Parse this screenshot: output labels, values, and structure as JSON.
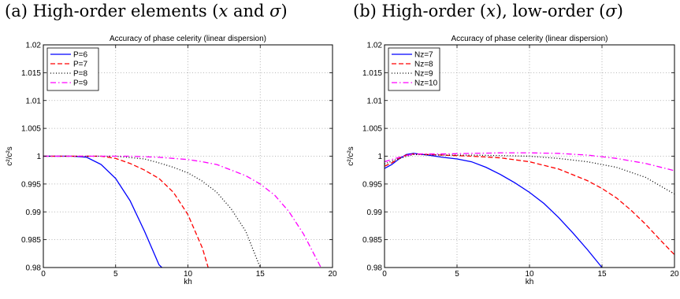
{
  "panels": [
    {
      "caption_prefix": "(a) High-order elements (",
      "caption_var1": "x",
      "caption_mid": " and ",
      "caption_var2": "σ",
      "caption_suffix": ")"
    },
    {
      "caption_prefix": "(b) High-order (",
      "caption_var1": "x",
      "caption_mid": "), low-order (",
      "caption_var2": "σ",
      "caption_suffix": ")"
    }
  ],
  "chart_data": [
    {
      "type": "line",
      "title": "Accuracy of phase celerity (linear dispersion)",
      "xlabel": "kh",
      "ylabel": "c²/c²s",
      "xlim": [
        0,
        20
      ],
      "ylim": [
        0.98,
        1.02
      ],
      "xticks": [
        "0",
        "5",
        "10",
        "15",
        "20"
      ],
      "yticks": [
        "0.98",
        "0.985",
        "0.99",
        "0.995",
        "1",
        "1.005",
        "1.01",
        "1.015",
        "1.02"
      ],
      "grid": true,
      "legend_position": "top-left",
      "series": [
        {
          "name": "P=6",
          "color": "#0000ff",
          "dash": "solid",
          "x": [
            0,
            1,
            2,
            3,
            4,
            5,
            6,
            7,
            7.5,
            8,
            8.2
          ],
          "y": [
            1,
            1,
            1,
            0.9998,
            0.9985,
            0.996,
            0.992,
            0.9865,
            0.9835,
            0.9805,
            0.98
          ]
        },
        {
          "name": "P=7",
          "color": "#ff0000",
          "dash": "dashed",
          "x": [
            0,
            2,
            4,
            5,
            6,
            7,
            8,
            9,
            10,
            10.5,
            11,
            11.4
          ],
          "y": [
            1,
            1,
            1,
            0.9996,
            0.9987,
            0.9975,
            0.996,
            0.9935,
            0.9895,
            0.9865,
            0.9835,
            0.98
          ]
        },
        {
          "name": "P=8",
          "color": "#000000",
          "dash": "dotted",
          "x": [
            0,
            3,
            5,
            7,
            8,
            9,
            10,
            11,
            12,
            13,
            14,
            15
          ],
          "y": [
            1,
            1,
            1,
            0.9995,
            0.9988,
            0.998,
            0.997,
            0.9955,
            0.9935,
            0.9905,
            0.9865,
            0.98
          ]
        },
        {
          "name": "P=9",
          "color": "#ff00ff",
          "dash": "dashdot",
          "x": [
            0,
            4,
            6,
            8,
            10,
            11,
            12,
            13,
            14,
            15,
            16,
            17,
            18,
            19.2
          ],
          "y": [
            1,
            1,
            1,
            0.9998,
            0.9994,
            0.999,
            0.9985,
            0.9975,
            0.9965,
            0.995,
            0.993,
            0.99,
            0.986,
            0.98
          ]
        }
      ]
    },
    {
      "type": "line",
      "title": "Accuracy of phase celerity (linear dispersion)",
      "xlabel": "kh",
      "ylabel": "c²/c²s",
      "xlim": [
        0,
        20
      ],
      "ylim": [
        0.98,
        1.02
      ],
      "xticks": [
        "0",
        "5",
        "10",
        "15",
        "20"
      ],
      "yticks": [
        "0.98",
        "0.985",
        "0.99",
        "0.995",
        "1",
        "1.005",
        "1.01",
        "1.015",
        "1.02"
      ],
      "grid": true,
      "legend_position": "top-left",
      "series": [
        {
          "name": "Nz=7",
          "color": "#0000ff",
          "dash": "solid",
          "x": [
            0,
            0.5,
            1,
            1.5,
            2,
            3,
            4,
            5,
            6,
            7,
            8,
            9,
            10,
            11,
            12,
            13,
            14,
            15
          ],
          "y": [
            0.9978,
            0.9985,
            0.9995,
            1.0003,
            1.0005,
            1.0002,
            0.9998,
            0.9995,
            0.999,
            0.998,
            0.9967,
            0.9952,
            0.9935,
            0.9915,
            0.989,
            0.9862,
            0.9832,
            0.98
          ]
        },
        {
          "name": "Nz=8",
          "color": "#ff0000",
          "dash": "dashed",
          "x": [
            0,
            0.5,
            1,
            1.5,
            2,
            3,
            4,
            6,
            8,
            10,
            12,
            14,
            15,
            16,
            17,
            18,
            19,
            20
          ],
          "y": [
            0.9982,
            0.9988,
            0.9996,
            1.0002,
            1.0004,
            1.0003,
            1.0002,
            1,
            0.9997,
            0.999,
            0.9977,
            0.9956,
            0.9942,
            0.9925,
            0.9903,
            0.9878,
            0.985,
            0.9823
          ]
        },
        {
          "name": "Nz=9",
          "color": "#000000",
          "dash": "dotted",
          "x": [
            0,
            1,
            2,
            4,
            6,
            8,
            10,
            12,
            14,
            16,
            18,
            20
          ],
          "y": [
            0.9986,
            0.9996,
            1.0003,
            1.0002,
            1.0002,
            1.0001,
            1,
            0.9996,
            0.999,
            0.998,
            0.9962,
            0.9932
          ]
        },
        {
          "name": "Nz=10",
          "color": "#ff00ff",
          "dash": "dashdot",
          "x": [
            0,
            1,
            2,
            4,
            6,
            8,
            10,
            12,
            14,
            16,
            18,
            20
          ],
          "y": [
            0.999,
            0.9998,
            1.0004,
            1.0004,
            1.0005,
            1.0006,
            1.0006,
            1.0005,
            1.0002,
            0.9996,
            0.9987,
            0.9974
          ]
        }
      ]
    }
  ]
}
